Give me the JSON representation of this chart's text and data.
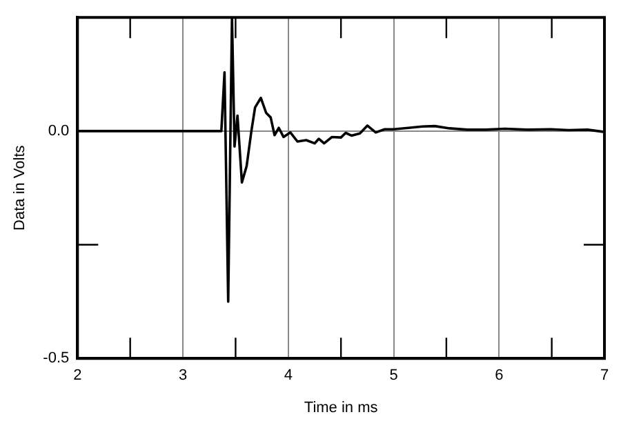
{
  "chart_data": {
    "type": "line",
    "xlabel": "Time in ms",
    "ylabel": "Data in Volts",
    "x": [
      2,
      3.365,
      3.395,
      3.43,
      3.466,
      3.49,
      3.518,
      3.56,
      3.605,
      3.65,
      3.685,
      3.74,
      3.79,
      3.833,
      3.87,
      3.91,
      3.955,
      4.02,
      4.087,
      4.17,
      4.25,
      4.29,
      4.34,
      4.415,
      4.5,
      4.545,
      4.6,
      4.68,
      4.75,
      4.83,
      4.915,
      5.0,
      5.14,
      5.27,
      5.39,
      5.53,
      5.7,
      5.875,
      6.055,
      6.27,
      6.49,
      6.66,
      6.84,
      7.0
    ],
    "series": [
      {
        "color": "#000000",
        "values": [
          0,
          0,
          0.129,
          -0.375,
          0.25,
          -0.034,
          0.034,
          -0.113,
          -0.077,
          0,
          0.052,
          0.073,
          0.04,
          0.03,
          -0.009,
          0.007,
          -0.013,
          -0.003,
          -0.023,
          -0.02,
          -0.027,
          -0.017,
          -0.027,
          -0.013,
          -0.014,
          -0.004,
          -0.01,
          -0.005,
          0.012,
          -0.003,
          0.004,
          0.004,
          0.007,
          0.01,
          0.011,
          0.006,
          0.003,
          0.003,
          0.005,
          0.003,
          0.004,
          0.002,
          0.003,
          -0.002
        ]
      }
    ],
    "xlim": [
      2,
      7
    ],
    "xticks": [
      2,
      {
        "value": 2.5,
        "label": null
      },
      3,
      {
        "value": 3.5,
        "label": null
      },
      4,
      {
        "value": 4.5,
        "label": null
      },
      5,
      {
        "value": 5.5,
        "label": null
      },
      6,
      {
        "value": 6.5,
        "label": null
      },
      7
    ],
    "ylim": [
      -0.5,
      0.25
    ],
    "yticks": [
      -0.5,
      {
        "value": -0.25,
        "label": null
      },
      {
        "value": 0,
        "label": "0.0"
      },
      {
        "value": 0.25,
        "label": null
      }
    ],
    "grid": true,
    "legend": false,
    "marker": "none",
    "line_style": "solid"
  }
}
